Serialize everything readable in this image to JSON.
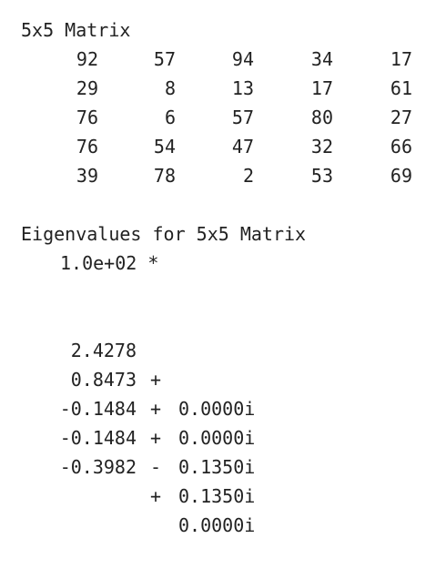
{
  "matrix_section": {
    "title": "5x5 Matrix",
    "rows": [
      [
        "92",
        "57",
        "94",
        "34",
        "17"
      ],
      [
        "29",
        "8",
        "13",
        "17",
        "61"
      ],
      [
        "76",
        "6",
        "57",
        "80",
        "27"
      ],
      [
        "76",
        "54",
        "47",
        "32",
        "66"
      ],
      [
        "39",
        "78",
        "2",
        "53",
        "69"
      ]
    ]
  },
  "eigen_section": {
    "title": "Eigenvalues for 5x5 Matrix",
    "scale": "1.0e+02 *",
    "values": [
      {
        "real": "2.4278",
        "op": "+",
        "imag": "0.0000i"
      },
      {
        "real": "0.8473",
        "op": "+",
        "imag": "0.0000i"
      },
      {
        "real": "-0.1484",
        "op": "+",
        "imag": "0.1350i"
      },
      {
        "real": "-0.1484",
        "op": "-",
        "imag": "0.1350i"
      },
      {
        "real": "-0.3982",
        "op": "+",
        "imag": "0.0000i"
      }
    ]
  }
}
